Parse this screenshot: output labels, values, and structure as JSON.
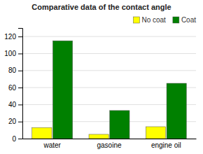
{
  "chart_data": {
    "type": "bar",
    "title": "Comparative data of the contact angle",
    "categories": [
      "water",
      "gasoine",
      "engine oil"
    ],
    "series": [
      {
        "name": "No coat",
        "color": "#FFFF00",
        "values": [
          13,
          5,
          14
        ]
      },
      {
        "name": "Coat",
        "color": "#008000",
        "values": [
          115,
          33,
          65
        ]
      }
    ],
    "ylim": [
      0,
      130
    ],
    "yticks": [
      0,
      20,
      40,
      60,
      80,
      100,
      120
    ],
    "grid": true,
    "legend": "upper right"
  }
}
